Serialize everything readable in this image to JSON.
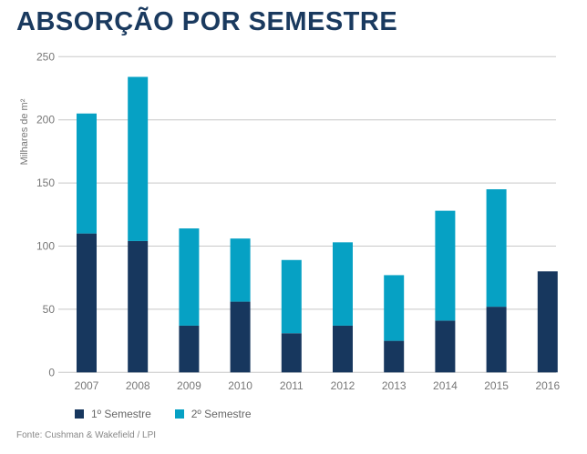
{
  "chart_data": {
    "type": "bar",
    "stacked": true,
    "title": "ABSORÇÃO POR SEMESTRE",
    "ylabel": "Milhares de m²",
    "xlabel": "",
    "ylim": [
      0,
      250
    ],
    "yticks": [
      0,
      50,
      100,
      150,
      200,
      250
    ],
    "grid": true,
    "legend_position": "bottom-left",
    "categories": [
      "2007",
      "2008",
      "2009",
      "2010",
      "2011",
      "2012",
      "2013",
      "2014",
      "2015",
      "2016"
    ],
    "series": [
      {
        "name": "1º Semestre",
        "color": "#17375e",
        "values": [
          110,
          104,
          37,
          56,
          31,
          37,
          25,
          41,
          52,
          80
        ]
      },
      {
        "name": "2º Semestre",
        "color": "#06a1c4",
        "values": [
          95,
          130,
          77,
          50,
          58,
          66,
          52,
          87,
          93,
          0
        ]
      }
    ],
    "source": "Fonte: Cushman & Wakefield / LPI"
  }
}
